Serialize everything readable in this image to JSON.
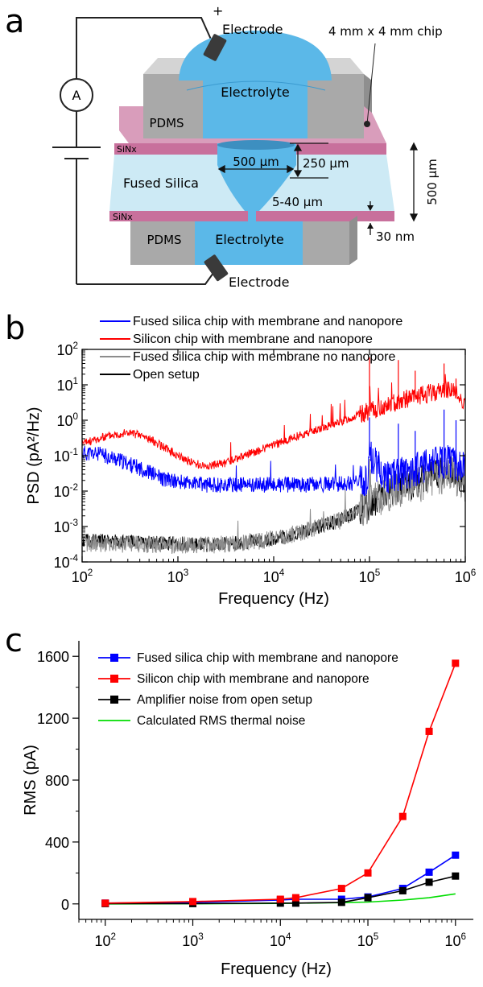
{
  "panel_a": {
    "letter": "a",
    "electrode_top": "Electrode",
    "plus_sign": "+",
    "chip_size": "4 mm x 4 mm chip",
    "ammeter": "A",
    "electrolyte_top": "Electrolyte",
    "pdms_top": "PDMS",
    "sinx_top": "SiNx",
    "fused_silica": "Fused Silica",
    "dim_500um": "500 µm",
    "dim_250um": "250 µm",
    "dim_5_40um": "5-40 µm",
    "dim_thickness": "500 µm",
    "sinx_bottom": "SiNx",
    "pdms_bottom": "PDMS",
    "electrolyte_bottom": "Electrolyte",
    "dim_30nm": "30 nm",
    "electrode_bottom": "Electrode",
    "colors": {
      "electrolyte": "#5bb8e8",
      "pdms": "#a9a9a9",
      "sinx": "#c8709c",
      "silica": "#cdeaf5"
    }
  },
  "chart_data": [
    {
      "panel": "b",
      "type": "line",
      "xlabel": "Frequency (Hz)",
      "ylabel": "PSD (pA²/Hz)",
      "x_scale": "log",
      "y_scale": "log",
      "xlim": [
        100,
        1000000
      ],
      "ylim": [
        0.0001,
        100
      ],
      "x_ticks": [
        {
          "label": "10",
          "sup": "2",
          "value": 100
        },
        {
          "label": "10",
          "sup": "3",
          "value": 1000
        },
        {
          "label": "10",
          "sup": "4",
          "value": 10000
        },
        {
          "label": "10",
          "sup": "5",
          "value": 100000
        },
        {
          "label": "10",
          "sup": "6",
          "value": 1000000
        }
      ],
      "y_ticks": [
        {
          "label": "10",
          "sup": "-4",
          "value": 0.0001
        },
        {
          "label": "10",
          "sup": "-3",
          "value": 0.001
        },
        {
          "label": "10",
          "sup": "-2",
          "value": 0.01
        },
        {
          "label": "10",
          "sup": "-1",
          "value": 0.1
        },
        {
          "label": "10",
          "sup": "0",
          "value": 1
        },
        {
          "label": "10",
          "sup": "1",
          "value": 10
        },
        {
          "label": "10",
          "sup": "2",
          "value": 100
        }
      ],
      "legend_position": "top",
      "series": [
        {
          "name": "Fused silica chip with membrane and nanopore",
          "color": "#0000ff",
          "x": [
            100,
            150,
            200,
            300,
            500,
            700,
            1000,
            2000,
            5000,
            10000,
            20000,
            50000,
            95000,
            100000,
            150000,
            200000,
            300000,
            500000,
            700000,
            1000000
          ],
          "y": [
            0.12,
            0.11,
            0.09,
            0.06,
            0.035,
            0.022,
            0.018,
            0.015,
            0.015,
            0.015,
            0.015,
            0.016,
            0.018,
            0.1,
            0.025,
            0.03,
            0.04,
            0.06,
            0.07,
            0.04
          ]
        },
        {
          "name": "Silicon chip with membrane and nanopore",
          "color": "#ff0000",
          "x": [
            100,
            150,
            200,
            300,
            400,
            500,
            700,
            1000,
            1500,
            2000,
            3000,
            5000,
            10000,
            20000,
            50000,
            100000,
            150000,
            200000,
            300000,
            500000,
            700000,
            1000000
          ],
          "y": [
            0.22,
            0.3,
            0.38,
            0.45,
            0.38,
            0.3,
            0.18,
            0.1,
            0.06,
            0.05,
            0.06,
            0.1,
            0.2,
            0.4,
            0.9,
            1.8,
            2.5,
            3.5,
            4.5,
            6.5,
            8.0,
            3.0
          ]
        },
        {
          "name": "Fused silica chip with membrane no nanopore",
          "color": "#8c8c8c",
          "x": [
            100,
            200,
            500,
            1000,
            2000,
            5000,
            10000,
            20000,
            50000,
            100000,
            150000,
            200000,
            300000,
            500000,
            700000,
            1000000
          ],
          "y": [
            0.00035,
            0.00033,
            0.00031,
            0.0003,
            0.0003,
            0.00035,
            0.00045,
            0.0007,
            0.0015,
            0.004,
            0.008,
            0.01,
            0.014,
            0.025,
            0.035,
            0.015
          ]
        },
        {
          "name": "Open setup",
          "color": "#000000",
          "x": [
            100,
            200,
            500,
            1000,
            2000,
            5000,
            10000,
            20000,
            50000,
            100000,
            150000,
            200000,
            300000,
            500000,
            700000,
            1000000
          ],
          "y": [
            0.0004,
            0.00038,
            0.00036,
            0.00034,
            0.0003,
            0.00035,
            0.00045,
            0.0007,
            0.0015,
            0.004,
            0.009,
            0.012,
            0.017,
            0.03,
            0.04,
            0.018
          ]
        }
      ]
    },
    {
      "panel": "c",
      "type": "line",
      "xlabel": "Frequency (Hz)",
      "ylabel": "RMS (pA)",
      "x_scale": "log",
      "y_scale": "linear",
      "xlim": [
        50,
        1600000
      ],
      "ylim": [
        -100,
        1700
      ],
      "x_ticks": [
        {
          "label": "10",
          "sup": "2",
          "value": 100
        },
        {
          "label": "10",
          "sup": "3",
          "value": 1000
        },
        {
          "label": "10",
          "sup": "4",
          "value": 10000
        },
        {
          "label": "10",
          "sup": "5",
          "value": 100000
        },
        {
          "label": "10",
          "sup": "6",
          "value": 1000000
        }
      ],
      "y_ticks": [
        0,
        400,
        800,
        1200,
        1600
      ],
      "legend_position": "top-left",
      "series": [
        {
          "name": "Fused silica chip with membrane and nanopore",
          "color": "#0000ff",
          "marker": "square",
          "x": [
            100,
            1000,
            10000,
            15000,
            50000,
            100000,
            250000,
            500000,
            1000000
          ],
          "y": [
            5,
            10,
            25,
            30,
            30,
            45,
            100,
            205,
            315
          ]
        },
        {
          "name": "Silicon chip with membrane and nanopore",
          "color": "#ff0000",
          "marker": "square",
          "x": [
            100,
            1000,
            10000,
            15000,
            50000,
            100000,
            250000,
            500000,
            1000000
          ],
          "y": [
            5,
            15,
            30,
            40,
            100,
            200,
            565,
            1115,
            1555
          ]
        },
        {
          "name": "Amplifier noise from open setup",
          "color": "#000000",
          "marker": "square",
          "x": [
            100,
            1000,
            10000,
            15000,
            50000,
            100000,
            250000,
            500000,
            1000000
          ],
          "y": [
            2,
            2,
            5,
            5,
            10,
            40,
            85,
            140,
            180
          ]
        },
        {
          "name": "Calculated RMS thermal noise",
          "color": "#00dd00",
          "marker": "none",
          "x": [
            100,
            1000,
            10000,
            50000,
            100000,
            250000,
            500000,
            1000000
          ],
          "y": [
            0,
            1,
            3,
            8,
            12,
            25,
            40,
            65
          ]
        }
      ]
    }
  ],
  "panel_b_letter": "b",
  "panel_c_letter": "c"
}
